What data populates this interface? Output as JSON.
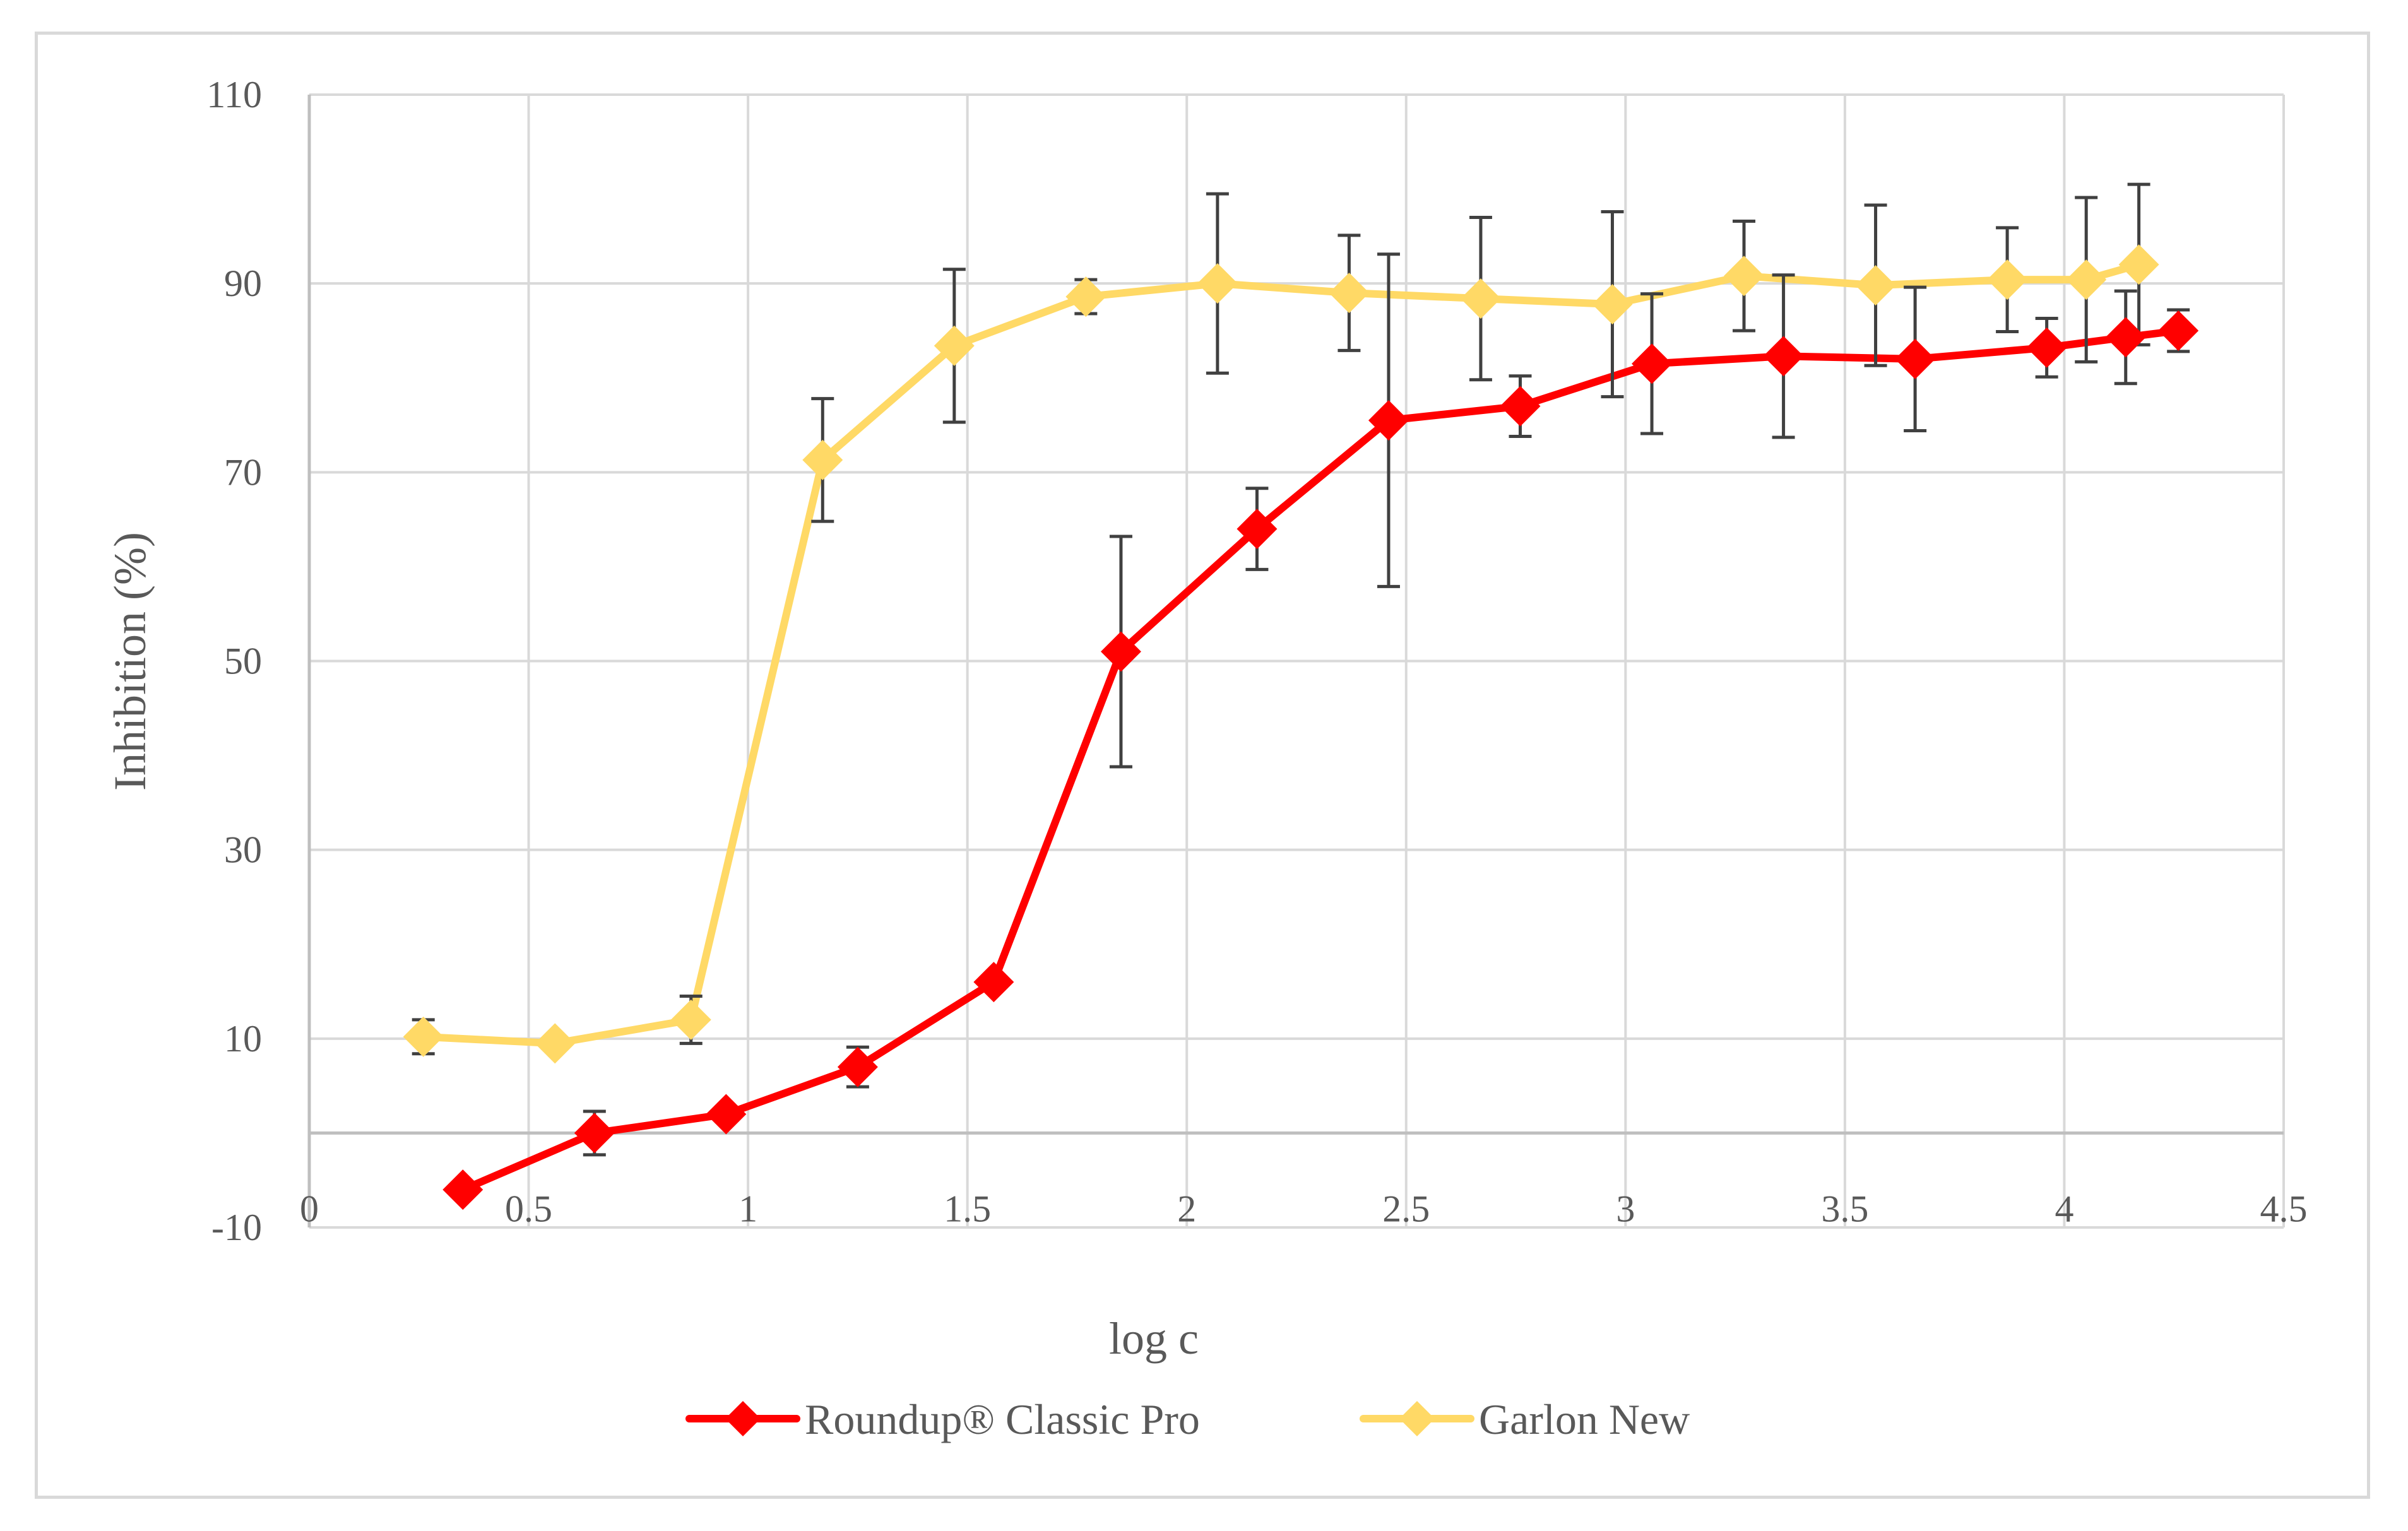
{
  "chart_data": {
    "type": "line",
    "title": "",
    "xlabel": "log c",
    "ylabel": "Inhibition (%)",
    "xlim": [
      0,
      4.5
    ],
    "ylim": [
      -10,
      110
    ],
    "xticks": [
      0,
      0.5,
      1,
      1.5,
      2,
      2.5,
      3,
      3.5,
      4,
      4.5
    ],
    "yticks": [
      -10,
      10,
      30,
      50,
      70,
      90,
      110
    ],
    "xtick_labels": [
      "0",
      "0.5",
      "1",
      "1.5",
      "2",
      "2.5",
      "3",
      "3.5",
      "4",
      "4.5"
    ],
    "ytick_labels": [
      "-10",
      "10",
      "30",
      "50",
      "70",
      "90",
      "110"
    ],
    "grid": true,
    "legend_position": "bottom-center",
    "series": [
      {
        "name": "Roundup® Classic Pro",
        "color": "#ff0000",
        "marker": "diamond",
        "x": [
          0.35,
          0.65,
          0.95,
          1.25,
          1.56,
          1.85,
          2.16,
          2.46,
          2.76,
          3.06,
          3.36,
          3.66,
          3.96,
          4.14,
          4.26
        ],
        "y": [
          -6,
          0,
          2,
          7,
          16,
          51,
          64,
          75.5,
          77,
          81.5,
          82.3,
          82,
          83.2,
          84.3,
          85
        ],
        "error": [
          0,
          2.3,
          0,
          2.1,
          0,
          12.2,
          4.3,
          17.6,
          3.2,
          7.4,
          8.6,
          7.6,
          3.1,
          4.9,
          2.2
        ]
      },
      {
        "name": "Garlon New",
        "color": "#ffd966",
        "marker": "diamond",
        "x": [
          0.26,
          0.56,
          0.87,
          1.17,
          1.47,
          1.77,
          2.07,
          2.37,
          2.67,
          2.97,
          3.27,
          3.57,
          3.87,
          4.05,
          4.17
        ],
        "y": [
          10.2,
          9.5,
          12,
          71.3,
          83.4,
          88.6,
          90,
          89,
          88.4,
          87.8,
          90.8,
          89.8,
          90.4,
          90.4,
          92
        ],
        "error": [
          1.8,
          0,
          2.5,
          6.5,
          8.1,
          1.8,
          9.5,
          6.1,
          8.6,
          9.8,
          5.8,
          8.5,
          5.5,
          8.7,
          8.5
        ]
      }
    ]
  }
}
